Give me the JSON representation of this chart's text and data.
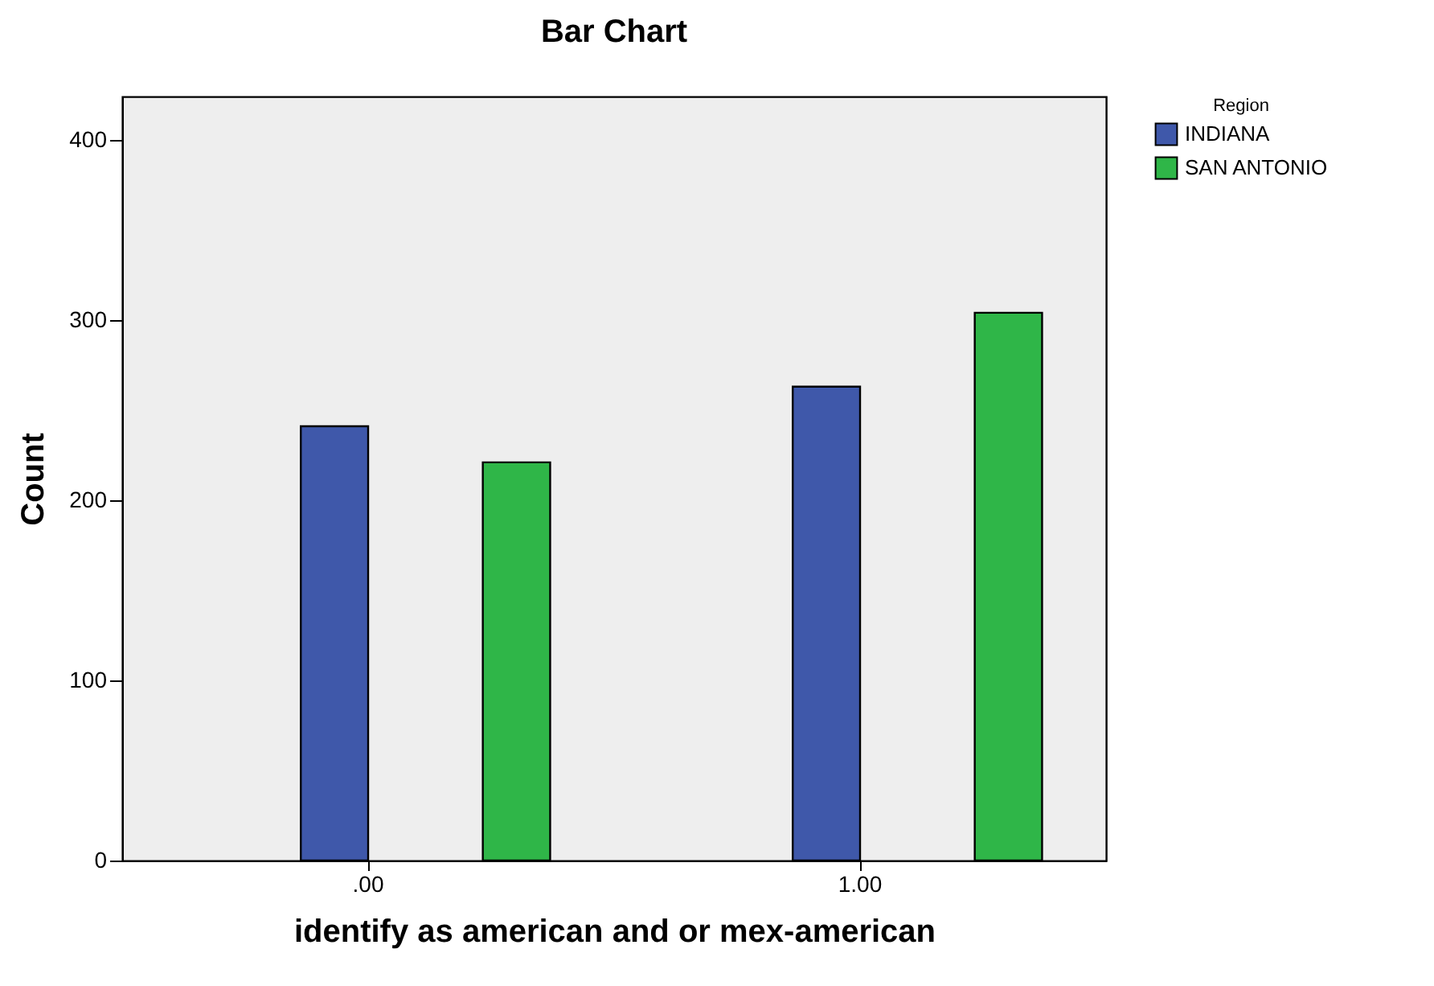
{
  "chart_data": {
    "type": "bar",
    "title": "Bar Chart",
    "xlabel": "identify as american and or mex-american",
    "ylabel": "Count",
    "legend_title": "Region",
    "categories": [
      ".00",
      "1.00"
    ],
    "series": [
      {
        "name": "INDIANA",
        "color": "#3f58aa",
        "values": [
          241,
          263
        ]
      },
      {
        "name": "SAN ANTONIO",
        "color": "#2fb648",
        "values": [
          221,
          304
        ]
      }
    ],
    "ylim": [
      0,
      424
    ],
    "yticks": [
      0,
      100,
      200,
      300,
      400
    ],
    "grid": false,
    "legend": "top right"
  }
}
